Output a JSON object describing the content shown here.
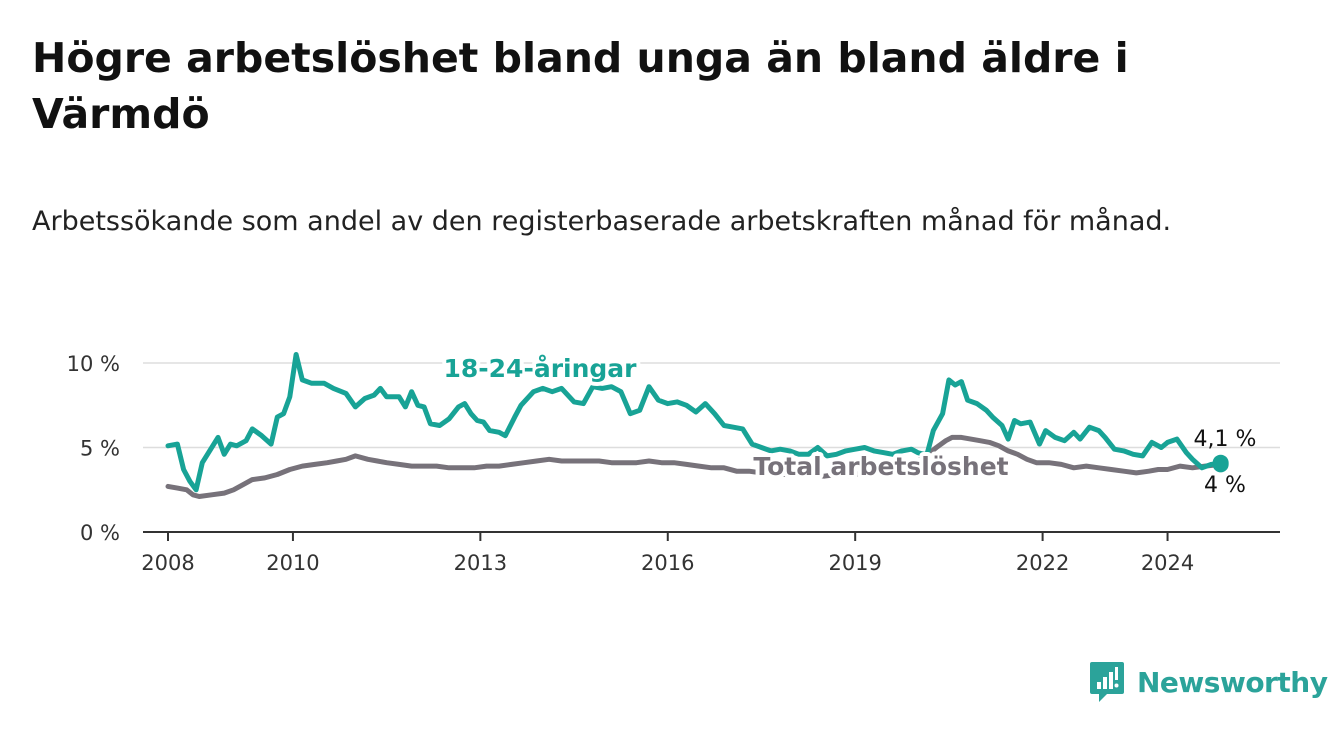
{
  "title": "Högre arbetslöshet bland unga än bland äldre i Värmdö",
  "subtitle": "Arbetssökande som andel av den registerbaserade arbetskraften månad för månad.",
  "brand": {
    "name": "Newsworthy"
  },
  "colors": {
    "youth": "#18a396",
    "total": "#77727a",
    "grid": "#dddddd",
    "axis": "#333333",
    "text": "#333333"
  },
  "chart_data": {
    "type": "line",
    "title": "Högre arbetslöshet bland unga än bland äldre i Värmdö",
    "xlabel": "",
    "ylabel": "",
    "xlim": [
      2007.6,
      2025.8
    ],
    "ylim": [
      0,
      10
    ],
    "yticks": [
      {
        "value": 0,
        "label": "0 %"
      },
      {
        "value": 5,
        "label": "5 %"
      },
      {
        "value": 10,
        "label": "10 %"
      }
    ],
    "xticks": [
      {
        "value": 2008,
        "label": "2008"
      },
      {
        "value": 2010,
        "label": "2010"
      },
      {
        "value": 2013,
        "label": "2013"
      },
      {
        "value": 2016,
        "label": "2016"
      },
      {
        "value": 2019,
        "label": "2019"
      },
      {
        "value": 2022,
        "label": "2022"
      },
      {
        "value": 2024,
        "label": "2024"
      }
    ],
    "series": [
      {
        "name": "18-24-åringar",
        "points": [
          [
            2008.0,
            5.1
          ],
          [
            2008.15,
            5.2
          ],
          [
            2008.25,
            3.7
          ],
          [
            2008.35,
            3.0
          ],
          [
            2008.45,
            2.5
          ],
          [
            2008.55,
            4.1
          ],
          [
            2008.8,
            5.6
          ],
          [
            2008.9,
            4.6
          ],
          [
            2009.0,
            5.2
          ],
          [
            2009.1,
            5.1
          ],
          [
            2009.25,
            5.4
          ],
          [
            2009.35,
            6.1
          ],
          [
            2009.5,
            5.7
          ],
          [
            2009.65,
            5.2
          ],
          [
            2009.75,
            6.8
          ],
          [
            2009.85,
            7.0
          ],
          [
            2009.95,
            8.0
          ],
          [
            2010.05,
            10.5
          ],
          [
            2010.15,
            9.0
          ],
          [
            2010.3,
            8.8
          ],
          [
            2010.5,
            8.8
          ],
          [
            2010.65,
            8.5
          ],
          [
            2010.85,
            8.2
          ],
          [
            2011.0,
            7.4
          ],
          [
            2011.15,
            7.9
          ],
          [
            2011.3,
            8.1
          ],
          [
            2011.4,
            8.5
          ],
          [
            2011.5,
            8.0
          ],
          [
            2011.7,
            8.0
          ],
          [
            2011.8,
            7.4
          ],
          [
            2011.9,
            8.3
          ],
          [
            2012.0,
            7.5
          ],
          [
            2012.1,
            7.4
          ],
          [
            2012.2,
            6.4
          ],
          [
            2012.35,
            6.3
          ],
          [
            2012.5,
            6.7
          ],
          [
            2012.65,
            7.4
          ],
          [
            2012.75,
            7.6
          ],
          [
            2012.85,
            7.0
          ],
          [
            2012.95,
            6.6
          ],
          [
            2013.05,
            6.5
          ],
          [
            2013.15,
            6.0
          ],
          [
            2013.3,
            5.9
          ],
          [
            2013.4,
            5.7
          ],
          [
            2013.55,
            6.8
          ],
          [
            2013.65,
            7.5
          ],
          [
            2013.85,
            8.3
          ],
          [
            2014.0,
            8.5
          ],
          [
            2014.15,
            8.3
          ],
          [
            2014.3,
            8.5
          ],
          [
            2014.5,
            7.7
          ],
          [
            2014.65,
            7.6
          ],
          [
            2014.8,
            8.6
          ],
          [
            2014.95,
            8.5
          ],
          [
            2015.1,
            8.6
          ],
          [
            2015.25,
            8.3
          ],
          [
            2015.4,
            7.0
          ],
          [
            2015.55,
            7.2
          ],
          [
            2015.7,
            8.6
          ],
          [
            2015.85,
            7.8
          ],
          [
            2016.0,
            7.6
          ],
          [
            2016.15,
            7.7
          ],
          [
            2016.3,
            7.5
          ],
          [
            2016.45,
            7.1
          ],
          [
            2016.6,
            7.6
          ],
          [
            2016.75,
            7.0
          ],
          [
            2016.9,
            6.3
          ],
          [
            2017.05,
            6.2
          ],
          [
            2017.2,
            6.1
          ],
          [
            2017.35,
            5.2
          ],
          [
            2017.5,
            5.0
          ],
          [
            2017.65,
            4.8
          ],
          [
            2017.8,
            4.9
          ],
          [
            2017.95,
            4.8
          ],
          [
            2018.1,
            4.6
          ],
          [
            2018.25,
            4.6
          ],
          [
            2018.4,
            5.0
          ],
          [
            2018.55,
            4.5
          ],
          [
            2018.7,
            4.6
          ],
          [
            2018.85,
            4.8
          ],
          [
            2019.0,
            4.9
          ],
          [
            2019.15,
            5.0
          ],
          [
            2019.3,
            4.8
          ],
          [
            2019.45,
            4.7
          ],
          [
            2019.6,
            4.6
          ],
          [
            2019.75,
            4.8
          ],
          [
            2019.9,
            4.9
          ],
          [
            2020.0,
            4.7
          ],
          [
            2020.1,
            4.6
          ],
          [
            2020.15,
            4.6
          ],
          [
            2020.25,
            6.0
          ],
          [
            2020.4,
            7.0
          ],
          [
            2020.5,
            9.0
          ],
          [
            2020.6,
            8.7
          ],
          [
            2020.7,
            8.9
          ],
          [
            2020.8,
            7.8
          ],
          [
            2020.95,
            7.6
          ],
          [
            2021.1,
            7.2
          ],
          [
            2021.2,
            6.8
          ],
          [
            2021.35,
            6.3
          ],
          [
            2021.45,
            5.5
          ],
          [
            2021.55,
            6.6
          ],
          [
            2021.65,
            6.4
          ],
          [
            2021.8,
            6.5
          ],
          [
            2021.95,
            5.2
          ],
          [
            2022.05,
            6.0
          ],
          [
            2022.2,
            5.6
          ],
          [
            2022.35,
            5.4
          ],
          [
            2022.5,
            5.9
          ],
          [
            2022.6,
            5.5
          ],
          [
            2022.75,
            6.2
          ],
          [
            2022.9,
            6.0
          ],
          [
            2023.0,
            5.6
          ],
          [
            2023.15,
            4.9
          ],
          [
            2023.3,
            4.8
          ],
          [
            2023.45,
            4.6
          ],
          [
            2023.6,
            4.5
          ],
          [
            2023.75,
            5.3
          ],
          [
            2023.9,
            5.0
          ],
          [
            2024.0,
            5.3
          ],
          [
            2024.15,
            5.5
          ],
          [
            2024.3,
            4.7
          ],
          [
            2024.4,
            4.3
          ],
          [
            2024.55,
            3.8
          ],
          [
            2024.7,
            4.0
          ],
          [
            2024.85,
            4.1
          ]
        ],
        "end_label": "4,1 %",
        "label": "18-24-åringar"
      },
      {
        "name": "Total arbetslöshet",
        "points": [
          [
            2008.0,
            2.7
          ],
          [
            2008.15,
            2.6
          ],
          [
            2008.3,
            2.5
          ],
          [
            2008.4,
            2.2
          ],
          [
            2008.5,
            2.1
          ],
          [
            2008.7,
            2.2
          ],
          [
            2008.9,
            2.3
          ],
          [
            2009.05,
            2.5
          ],
          [
            2009.2,
            2.8
          ],
          [
            2009.35,
            3.1
          ],
          [
            2009.55,
            3.2
          ],
          [
            2009.75,
            3.4
          ],
          [
            2009.95,
            3.7
          ],
          [
            2010.15,
            3.9
          ],
          [
            2010.35,
            4.0
          ],
          [
            2010.55,
            4.1
          ],
          [
            2010.7,
            4.2
          ],
          [
            2010.85,
            4.3
          ],
          [
            2011.0,
            4.5
          ],
          [
            2011.2,
            4.3
          ],
          [
            2011.35,
            4.2
          ],
          [
            2011.5,
            4.1
          ],
          [
            2011.7,
            4.0
          ],
          [
            2011.9,
            3.9
          ],
          [
            2012.1,
            3.9
          ],
          [
            2012.3,
            3.9
          ],
          [
            2012.5,
            3.8
          ],
          [
            2012.7,
            3.8
          ],
          [
            2012.9,
            3.8
          ],
          [
            2013.1,
            3.9
          ],
          [
            2013.3,
            3.9
          ],
          [
            2013.5,
            4.0
          ],
          [
            2013.7,
            4.1
          ],
          [
            2013.9,
            4.2
          ],
          [
            2014.1,
            4.3
          ],
          [
            2014.3,
            4.2
          ],
          [
            2014.5,
            4.2
          ],
          [
            2014.7,
            4.2
          ],
          [
            2014.9,
            4.2
          ],
          [
            2015.1,
            4.1
          ],
          [
            2015.3,
            4.1
          ],
          [
            2015.5,
            4.1
          ],
          [
            2015.7,
            4.2
          ],
          [
            2015.9,
            4.1
          ],
          [
            2016.1,
            4.1
          ],
          [
            2016.3,
            4.0
          ],
          [
            2016.5,
            3.9
          ],
          [
            2016.7,
            3.8
          ],
          [
            2016.9,
            3.8
          ],
          [
            2017.1,
            3.6
          ],
          [
            2017.3,
            3.6
          ],
          [
            2017.5,
            3.5
          ],
          [
            2017.7,
            3.4
          ],
          [
            2017.9,
            3.4
          ],
          [
            2018.1,
            3.4
          ],
          [
            2018.3,
            3.4
          ],
          [
            2018.5,
            3.3
          ],
          [
            2018.7,
            3.4
          ],
          [
            2018.9,
            3.3
          ],
          [
            2019.1,
            3.5
          ],
          [
            2019.3,
            3.5
          ],
          [
            2019.5,
            3.6
          ],
          [
            2019.7,
            3.8
          ],
          [
            2019.9,
            4.0
          ],
          [
            2020.1,
            4.4
          ],
          [
            2020.3,
            5.0
          ],
          [
            2020.45,
            5.4
          ],
          [
            2020.55,
            5.6
          ],
          [
            2020.7,
            5.6
          ],
          [
            2020.85,
            5.5
          ],
          [
            2021.0,
            5.4
          ],
          [
            2021.15,
            5.3
          ],
          [
            2021.3,
            5.1
          ],
          [
            2021.45,
            4.8
          ],
          [
            2021.6,
            4.6
          ],
          [
            2021.75,
            4.3
          ],
          [
            2021.9,
            4.1
          ],
          [
            2022.1,
            4.1
          ],
          [
            2022.3,
            4.0
          ],
          [
            2022.5,
            3.8
          ],
          [
            2022.7,
            3.9
          ],
          [
            2022.9,
            3.8
          ],
          [
            2023.1,
            3.7
          ],
          [
            2023.3,
            3.6
          ],
          [
            2023.5,
            3.5
          ],
          [
            2023.7,
            3.6
          ],
          [
            2023.85,
            3.7
          ],
          [
            2024.0,
            3.7
          ],
          [
            2024.2,
            3.9
          ],
          [
            2024.4,
            3.8
          ],
          [
            2024.6,
            3.9
          ],
          [
            2024.85,
            4.0
          ]
        ],
        "end_label": "4 %",
        "label": "Total arbetslöshet"
      }
    ]
  }
}
